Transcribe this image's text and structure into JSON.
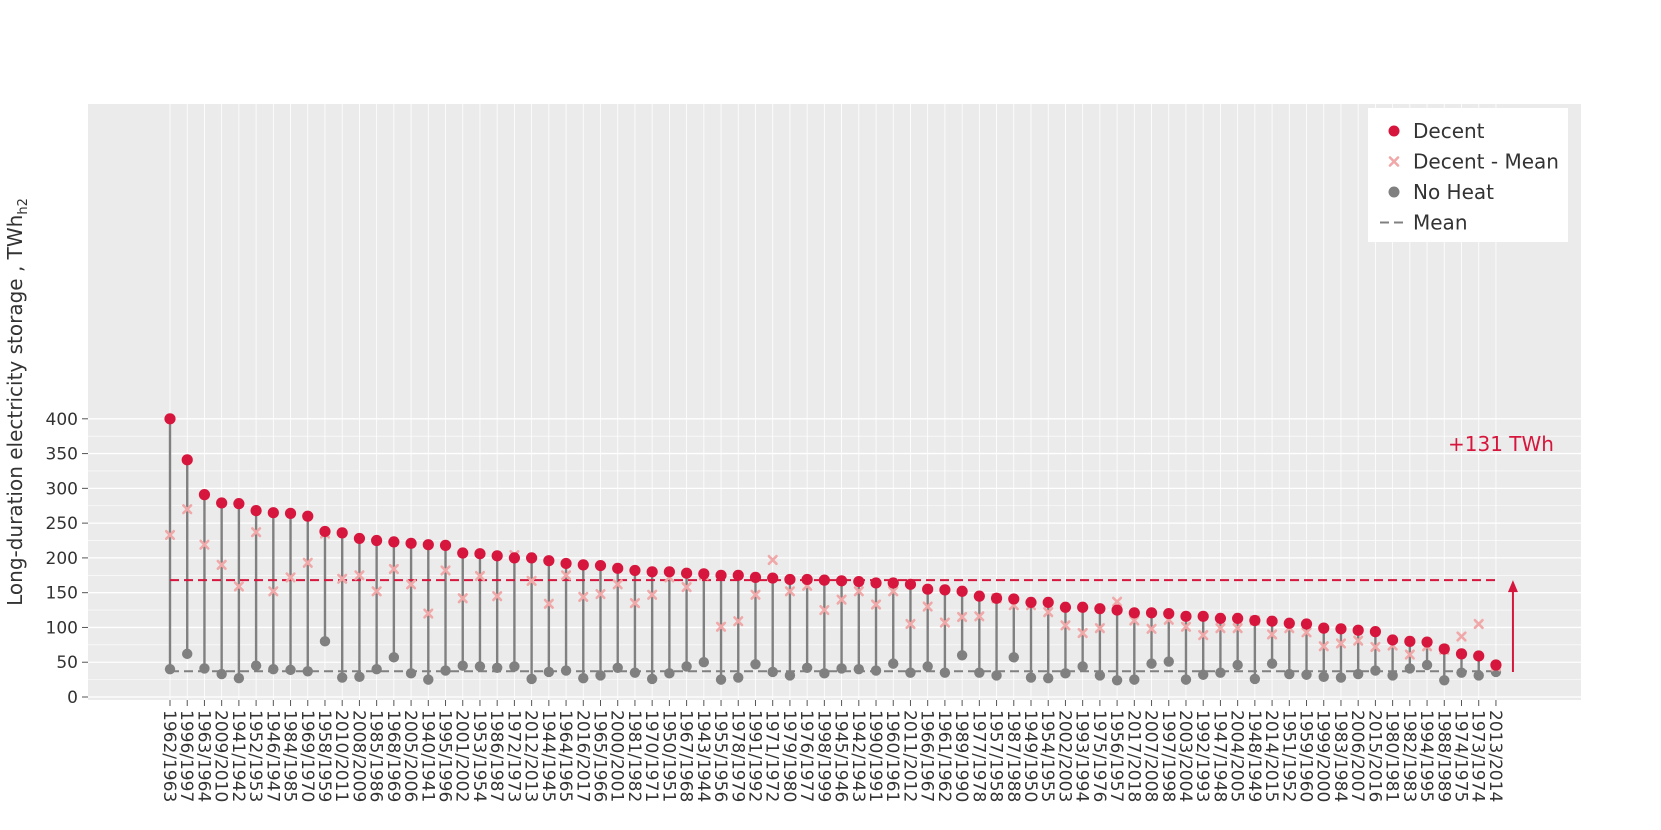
{
  "chart_data": {
    "type": "scatter",
    "subtype": "lollipop",
    "ylabel": "Long-duration electricity storage , TWh",
    "ylabel_subscript": "h2",
    "ylim": [
      0,
      420
    ],
    "yticks": [
      0,
      50,
      100,
      150,
      200,
      250,
      300,
      350,
      400
    ],
    "grid": true,
    "legend_position": "top-right",
    "categories": [
      "1962/1963",
      "1996/1997",
      "1963/1964",
      "2009/2010",
      "1941/1942",
      "1952/1953",
      "1946/1947",
      "1984/1985",
      "1969/1970",
      "1958/1959",
      "2010/2011",
      "2008/2009",
      "1985/1986",
      "1968/1969",
      "2005/2006",
      "1940/1941",
      "1995/1996",
      "2001/2002",
      "1953/1954",
      "1986/1987",
      "1972/1973",
      "2012/2013",
      "1944/1945",
      "1964/1965",
      "2016/2017",
      "1965/1966",
      "2000/2001",
      "1981/1982",
      "1970/1971",
      "1950/1951",
      "1967/1968",
      "1943/1944",
      "1955/1956",
      "1978/1979",
      "1991/1992",
      "1971/1972",
      "1979/1980",
      "1976/1977",
      "1998/1999",
      "1945/1946",
      "1942/1943",
      "1990/1991",
      "1960/1961",
      "2011/2012",
      "1966/1967",
      "1961/1962",
      "1989/1990",
      "1977/1978",
      "1957/1958",
      "1987/1988",
      "1949/1950",
      "1954/1955",
      "2002/2003",
      "1993/1994",
      "1975/1976",
      "1956/1957",
      "2017/2018",
      "2007/2008",
      "1997/1998",
      "2003/2004",
      "1992/1993",
      "1947/1948",
      "2004/2005",
      "1948/1949",
      "2014/2015",
      "1951/1952",
      "1959/1960",
      "1999/2000",
      "1983/1984",
      "2006/2007",
      "2015/2016",
      "1980/1981",
      "1982/1983",
      "1994/1995",
      "1988/1989",
      "1974/1975",
      "1973/1974",
      "2013/2014"
    ],
    "series": [
      {
        "name": "Decent",
        "color": "#d6163d",
        "marker": "circle",
        "values": [
          400,
          341,
          291,
          279,
          278,
          268,
          265,
          264,
          260,
          238,
          236,
          228,
          225,
          223,
          221,
          219,
          218,
          207,
          206,
          203,
          200,
          200,
          196,
          192,
          190,
          189,
          185,
          182,
          180,
          180,
          178,
          177,
          175,
          175,
          172,
          171,
          169,
          169,
          168,
          167,
          166,
          164,
          164,
          162,
          155,
          154,
          152,
          145,
          142,
          141,
          136,
          136,
          129,
          129,
          127,
          125,
          121,
          121,
          120,
          116,
          116,
          113,
          113,
          110,
          109,
          106,
          105,
          99,
          98,
          96,
          94,
          82,
          80,
          79,
          69,
          62,
          59,
          46
        ]
      },
      {
        "name": "Decent - Mean",
        "color": "#f0a8a8",
        "marker": "x",
        "values": [
          233,
          270,
          219,
          190,
          159,
          237,
          152,
          172,
          193,
          235,
          170,
          175,
          152,
          184,
          162,
          120,
          182,
          142,
          174,
          145,
          204,
          167,
          134,
          175,
          144,
          148,
          162,
          135,
          147,
          172,
          158,
          175,
          101,
          109,
          147,
          197,
          152,
          160,
          125,
          140,
          152,
          133,
          152,
          105,
          130,
          107,
          115,
          116,
          142,
          132,
          132,
          122,
          103,
          92,
          99,
          137,
          110,
          98,
          111,
          101,
          89,
          99,
          99,
          110,
          90,
          99,
          93,
          73,
          77,
          81,
          72,
          74,
          61,
          73,
          68,
          87,
          105,
          44
        ]
      },
      {
        "name": "No Heat",
        "color": "#808080",
        "marker": "circle",
        "values": [
          40,
          62,
          41,
          33,
          27,
          45,
          40,
          39,
          37,
          80,
          28,
          29,
          40,
          57,
          34,
          25,
          38,
          45,
          44,
          42,
          44,
          26,
          36,
          38,
          27,
          31,
          42,
          35,
          26,
          34,
          44,
          50,
          25,
          28,
          47,
          36,
          31,
          42,
          34,
          41,
          40,
          38,
          48,
          35,
          44,
          35,
          60,
          35,
          31,
          57,
          28,
          27,
          34,
          44,
          31,
          24,
          25,
          48,
          51,
          25,
          32,
          35,
          46,
          26,
          48,
          33,
          32,
          29,
          28,
          33,
          38,
          31,
          41,
          46,
          24,
          35,
          31,
          36
        ]
      }
    ],
    "mean_value": 168,
    "mean_no_heat": 37,
    "legend": [
      {
        "label": "Decent",
        "marker": "circle",
        "color": "#d6163d"
      },
      {
        "label": "Decent - Mean",
        "marker": "x",
        "color": "#f0a8a8"
      },
      {
        "label": "No Heat",
        "marker": "circle",
        "color": "#808080"
      },
      {
        "label": "Mean",
        "marker": "dashed-line",
        "color": "#808080"
      }
    ],
    "annotation": {
      "text": "+131 TWh",
      "color": "#d6163d"
    }
  }
}
